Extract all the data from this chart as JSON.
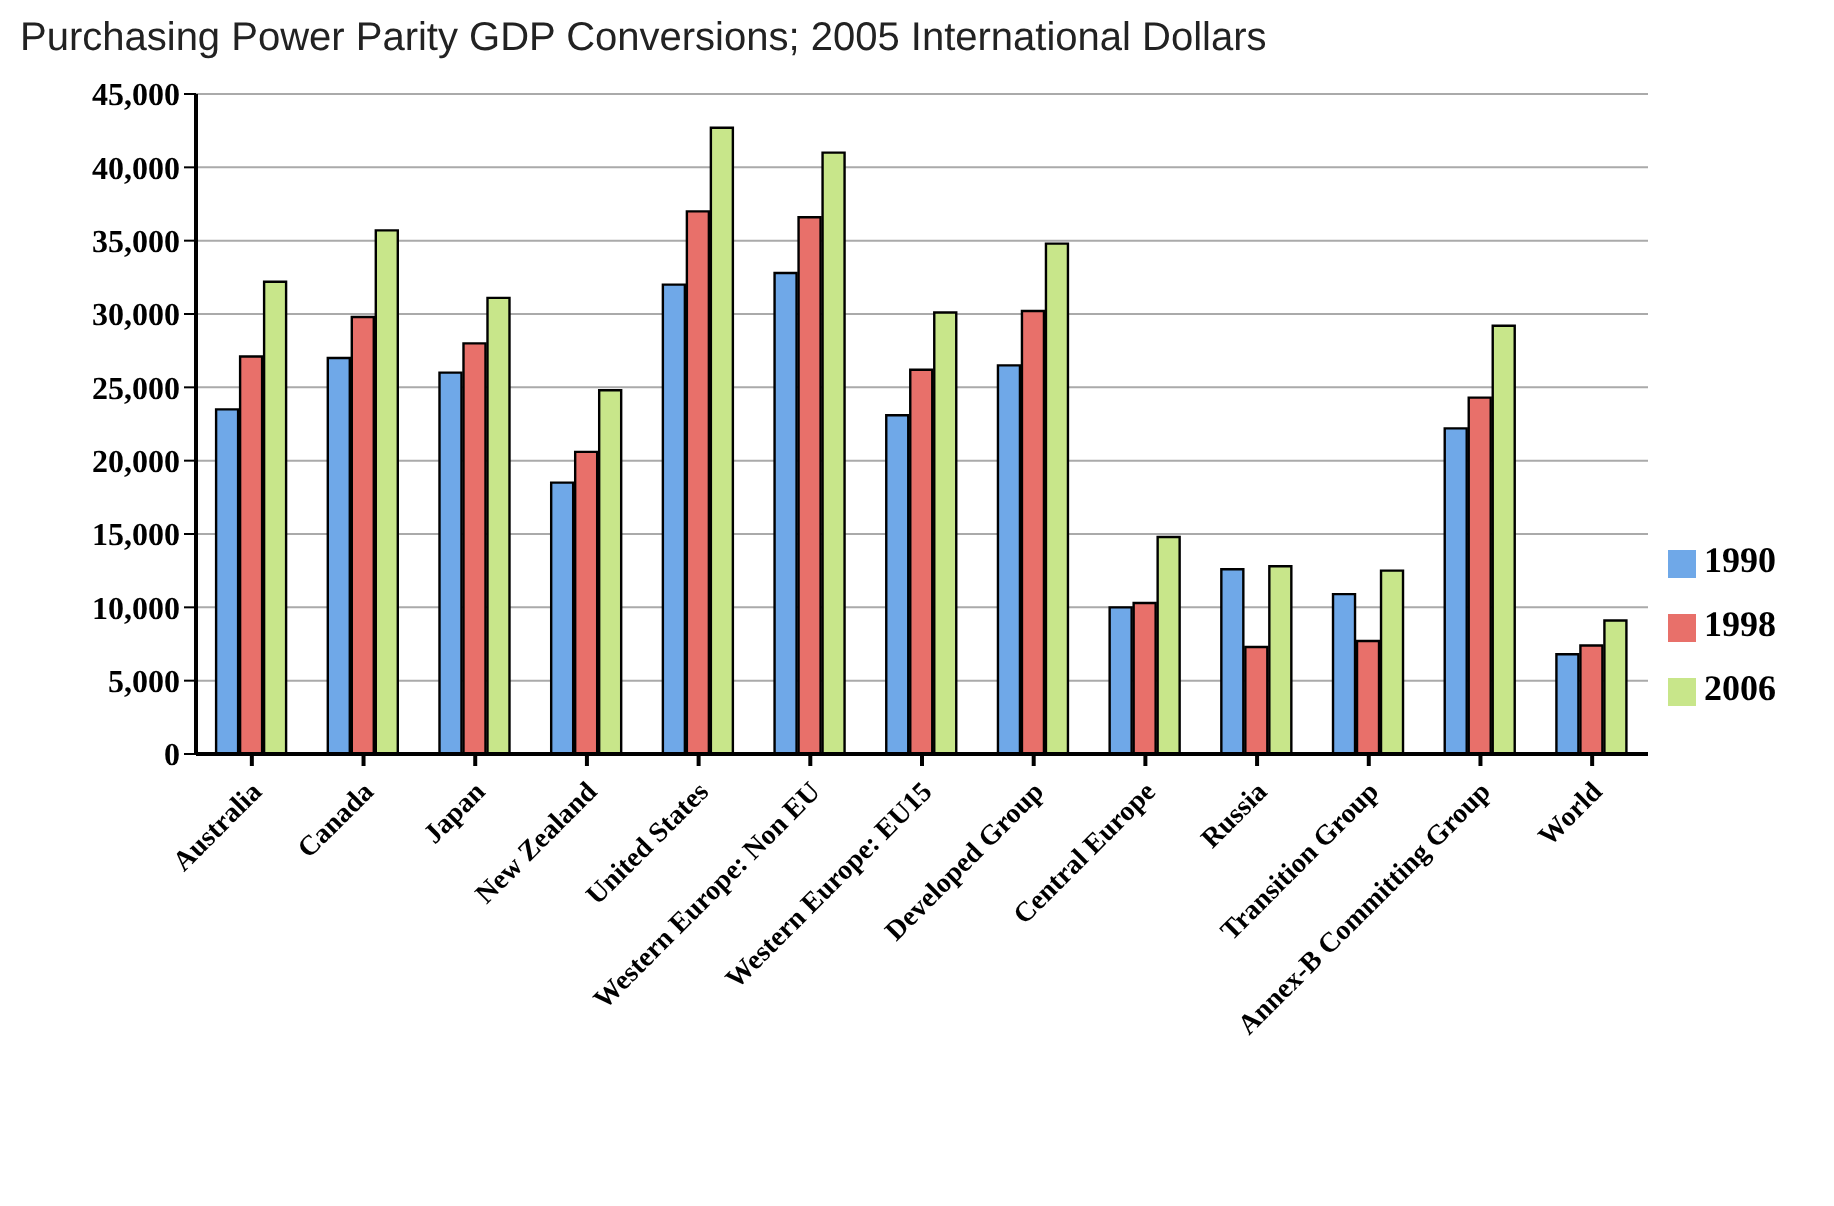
{
  "chart_data": {
    "type": "bar",
    "title": "Purchasing Power Parity GDP Conversions; 2005 International Dollars",
    "categories": [
      "Australia",
      "Canada",
      "Japan",
      "New Zealand",
      "United States",
      "Western Europe: Non EU",
      "Western Europe: EU15",
      "Developed Group",
      "Central Europe",
      "Russia",
      "Transition Group",
      "Annex-B Committing Group",
      "World"
    ],
    "series": [
      {
        "name": "1990",
        "color": "#6fa8e8",
        "values": [
          23500,
          27000,
          26000,
          18500,
          32000,
          32800,
          23100,
          26500,
          10000,
          12600,
          10900,
          22200,
          6800
        ]
      },
      {
        "name": "1998",
        "color": "#e8706a",
        "values": [
          27100,
          29800,
          28000,
          20600,
          37000,
          36600,
          26200,
          30200,
          10300,
          7300,
          7700,
          24300,
          7400
        ]
      },
      {
        "name": "2006",
        "color": "#c8e68a",
        "values": [
          32200,
          35700,
          31100,
          24800,
          42700,
          41000,
          30100,
          34800,
          14800,
          12800,
          12500,
          29200,
          9100
        ]
      }
    ],
    "ylim": [
      0,
      45000
    ],
    "yticks": [
      {
        "value": 0,
        "label": "0"
      },
      {
        "value": 5000,
        "label": "5,000"
      },
      {
        "value": 10000,
        "label": "10,000"
      },
      {
        "value": 15000,
        "label": "15,000"
      },
      {
        "value": 20000,
        "label": "20,000"
      },
      {
        "value": 25000,
        "label": "25,000"
      },
      {
        "value": 30000,
        "label": "30,000"
      },
      {
        "value": 35000,
        "label": "35,000"
      },
      {
        "value": 40000,
        "label": "40,000"
      },
      {
        "value": 45000,
        "label": "45,000"
      }
    ],
    "grid": "y",
    "legend": "right"
  }
}
